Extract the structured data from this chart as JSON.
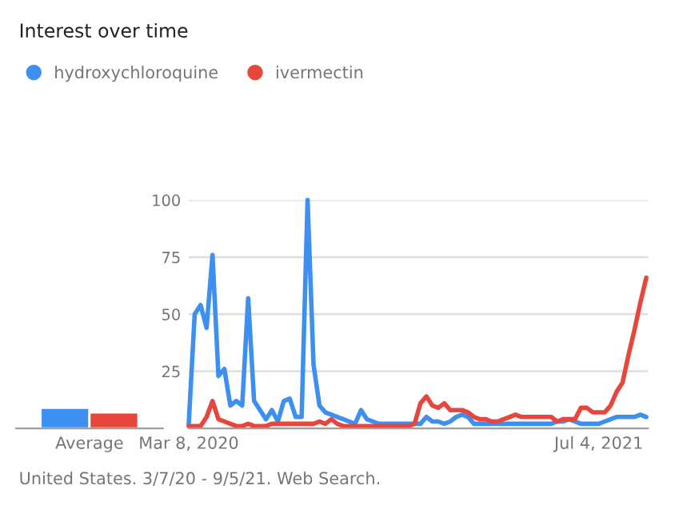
{
  "chart_data": [
    {
      "type": "bar",
      "title": "Interest over time",
      "categories": [
        "Average"
      ],
      "ylim": [
        0,
        100
      ],
      "tick_labels": "x",
      "series": [
        {
          "color": "#3d8ff0",
          "values": [
            9
          ]
        },
        {
          "color": "#e8453c",
          "values": [
            7
          ]
        }
      ]
    },
    {
      "type": "line",
      "annotations": [
        "United States. 3/7/20 - 9/5/21. Web Search."
      ],
      "legend": "top left",
      "grid": "y",
      "ylim": [
        0,
        100
      ],
      "yticks": [
        25,
        50,
        75,
        100
      ],
      "xlim": [
        "2020-03-08",
        "2021-08-31"
      ],
      "xticks": [
        {
          "value": "2020-03-08",
          "label": "Mar 8, 2020"
        },
        {
          "value": "2021-07-04",
          "label": "Jul 4, 2021"
        }
      ],
      "x": [
        "2020-03-08",
        "2020-03-15",
        "2020-03-22",
        "2020-03-29",
        "2020-04-05",
        "2020-04-12",
        "2020-04-19",
        "2020-04-26",
        "2020-05-03",
        "2020-05-10",
        "2020-05-17",
        "2020-05-24",
        "2020-05-31",
        "2020-06-07",
        "2020-06-14",
        "2020-06-21",
        "2020-06-28",
        "2020-07-05",
        "2020-07-12",
        "2020-07-19",
        "2020-07-26",
        "2020-08-02",
        "2020-08-09",
        "2020-08-16",
        "2020-08-23",
        "2020-08-30",
        "2020-09-06",
        "2020-09-13",
        "2020-09-20",
        "2020-09-27",
        "2020-10-04",
        "2020-10-11",
        "2020-10-18",
        "2020-10-25",
        "2020-11-01",
        "2020-11-08",
        "2020-11-15",
        "2020-11-22",
        "2020-11-29",
        "2020-12-06",
        "2020-12-13",
        "2020-12-20",
        "2020-12-27",
        "2021-01-03",
        "2021-01-10",
        "2021-01-17",
        "2021-01-24",
        "2021-01-31",
        "2021-02-07",
        "2021-02-14",
        "2021-02-21",
        "2021-02-28",
        "2021-03-07",
        "2021-03-14",
        "2021-03-21",
        "2021-03-28",
        "2021-04-04",
        "2021-04-11",
        "2021-04-18",
        "2021-04-25",
        "2021-05-02",
        "2021-05-09",
        "2021-05-16",
        "2021-05-23",
        "2021-05-30",
        "2021-06-06",
        "2021-06-13",
        "2021-06-20",
        "2021-06-27",
        "2021-07-04",
        "2021-07-11",
        "2021-07-18",
        "2021-07-25",
        "2021-08-01",
        "2021-08-08",
        "2021-08-15",
        "2021-08-22",
        "2021-08-29"
      ],
      "series": [
        {
          "name": "hydroxychloroquine",
          "color": "#3d8ff0",
          "values": [
            2,
            50,
            54,
            44,
            76,
            23,
            26,
            10,
            12,
            10,
            57,
            12,
            8,
            4,
            8,
            3,
            12,
            13,
            5,
            5,
            100,
            28,
            10,
            7,
            6,
            5,
            4,
            3,
            2,
            8,
            4,
            3,
            2,
            2,
            2,
            2,
            2,
            2,
            2,
            2,
            5,
            3,
            3,
            2,
            3,
            5,
            6,
            5,
            2,
            2,
            2,
            2,
            2,
            2,
            2,
            2,
            2,
            2,
            2,
            2,
            2,
            2,
            3,
            3,
            4,
            3,
            2,
            2,
            2,
            2,
            3,
            4,
            5,
            5,
            5,
            5,
            6,
            5
          ]
        },
        {
          "name": "ivermectin",
          "color": "#e8453c",
          "values": [
            1,
            1,
            1,
            5,
            12,
            4,
            3,
            2,
            1,
            1,
            2,
            1,
            1,
            1,
            2,
            2,
            2,
            2,
            2,
            2,
            2,
            2,
            3,
            2,
            4,
            2,
            1,
            1,
            1,
            1,
            1,
            1,
            1,
            1,
            1,
            1,
            1,
            1,
            2,
            11,
            14,
            10,
            9,
            11,
            8,
            8,
            8,
            7,
            5,
            4,
            4,
            3,
            3,
            4,
            5,
            6,
            5,
            5,
            5,
            5,
            5,
            5,
            3,
            4,
            4,
            4,
            9,
            9,
            7,
            7,
            7,
            10,
            16,
            20,
            32,
            43,
            55,
            66
          ]
        }
      ]
    }
  ]
}
